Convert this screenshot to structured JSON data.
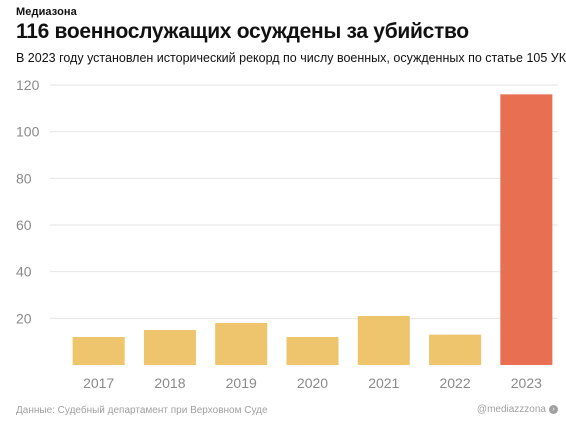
{
  "brand": "Медиазона",
  "title": "116 военнослужащих осуждены за убийство",
  "subtitle": "В 2023 году установлен исторический рекорд по числу военных, осужденных по статье 105 УК",
  "footer": {
    "source": "Данные: Судебный департамент при Верховном Суде",
    "handle": "@mediazzzona",
    "handle_icon": "arrow-circle-icon"
  },
  "colors": {
    "bar": "#eec56c",
    "highlight_bar": "#e86f52",
    "grid": "#e6e6e6",
    "tick_text": "#8a8a8a"
  },
  "chart_data": {
    "type": "bar",
    "title": "116 военнослужащих осуждены за убийство",
    "subtitle": "В 2023 году установлен исторический рекорд по числу военных, осужденных по статье 105 УК",
    "xlabel": "",
    "ylabel": "",
    "categories": [
      "2017",
      "2018",
      "2019",
      "2020",
      "2021",
      "2022",
      "2023"
    ],
    "values": [
      12,
      15,
      18,
      12,
      21,
      13,
      116
    ],
    "highlight_index": 6,
    "ylim": [
      0,
      120
    ],
    "yticks": [
      20,
      40,
      60,
      80,
      100,
      120
    ],
    "grid": true,
    "legend": "none"
  }
}
